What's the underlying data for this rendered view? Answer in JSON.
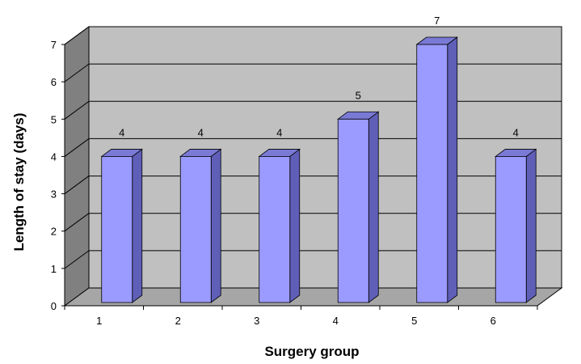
{
  "chart_data": {
    "type": "bar",
    "xlabel": "Surgery group",
    "ylabel": "Length of stay (days)",
    "categories": [
      "1",
      "2",
      "3",
      "4",
      "5",
      "6"
    ],
    "values": [
      4,
      4,
      4,
      5,
      7,
      4
    ],
    "data_labels": [
      "4",
      "4",
      "4",
      "5",
      "7",
      "4"
    ],
    "yticks": [
      "0",
      "1",
      "2",
      "3",
      "4",
      "5",
      "6",
      "7"
    ],
    "ylim": [
      0,
      7
    ],
    "grid": true,
    "style": "3d",
    "colors": {
      "bar_front": "#9b9bff",
      "bar_side": "#5f5fb8",
      "bar_top": "#7a7ad6",
      "back_wall": "#c0c0c0",
      "side_wall": "#808080",
      "floor": "#a6a6a6",
      "gridline": "#000000"
    }
  }
}
